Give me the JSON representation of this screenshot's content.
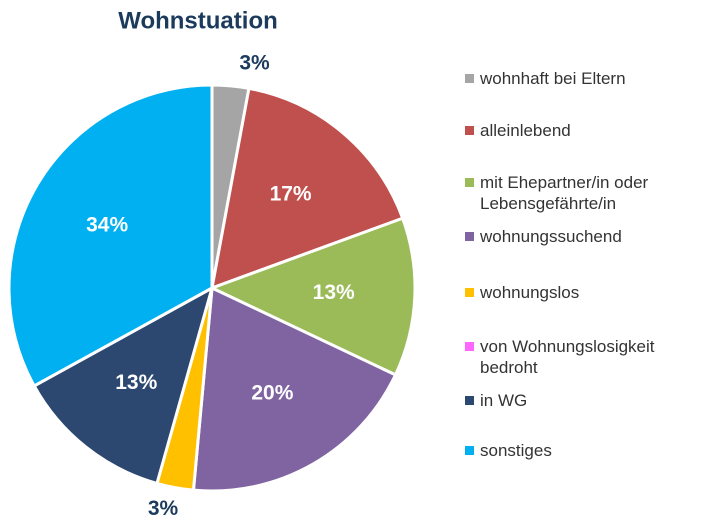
{
  "chart_data": {
    "type": "pie",
    "title": "Wohnstuation",
    "categories": [
      "wohnhaft bei Eltern",
      "alleinlebend",
      "mit Ehepartner/in oder Lebensgefährte/in",
      "wohnungssuchend",
      "wohnungslos",
      "von Wohnungslosigkeit bedroht",
      "in WG",
      "sonstiges"
    ],
    "values": [
      3,
      17,
      13,
      20,
      3,
      0,
      13,
      34
    ],
    "value_labels": [
      "3%",
      "17%",
      "13%",
      "20%",
      "3%",
      null,
      "13%",
      "34%"
    ],
    "colors": [
      "#a5a5a5",
      "#c0504d",
      "#9bbb59",
      "#8064a2",
      "#ffc000",
      "#ff66ff",
      "#2c4770",
      "#00b0f0"
    ],
    "legend": "right"
  }
}
